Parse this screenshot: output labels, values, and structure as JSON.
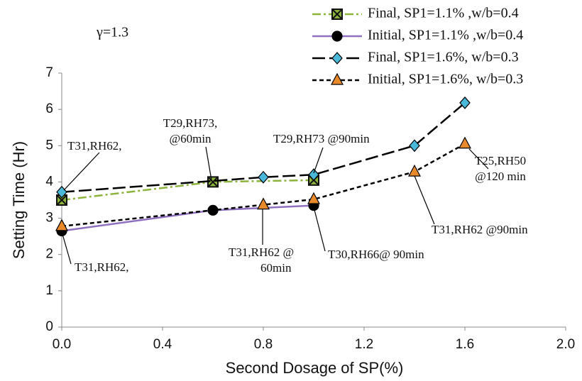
{
  "chart_data": {
    "type": "line",
    "note": "γ=1.3",
    "x_label": "Second Dosage of SP(%)",
    "y_label": "Setting Time (Hr)",
    "xlim": [
      0,
      2.0
    ],
    "ylim": [
      0,
      7
    ],
    "xticks": [
      {
        "value": 0,
        "label": "0.0"
      },
      0.4,
      0.8,
      1.2,
      1.6,
      {
        "value": 2.0,
        "label": "2.0"
      }
    ],
    "yticks": [
      0,
      1,
      2,
      3,
      4,
      5,
      6,
      7
    ],
    "series": [
      {
        "name": "Final, SP1=1.1% ,w/b=0.4",
        "color": "#8cb43c",
        "marker": "square-x",
        "marker_color": "#3a6e1e",
        "dash": "12 4 3 4",
        "x": [
          0,
          0.6,
          1.0
        ],
        "values": [
          3.5,
          4.0,
          4.05
        ]
      },
      {
        "name": "Initial, SP1=1.1% ,w/b=0.4",
        "color": "#8f6fc0",
        "marker": "circle",
        "marker_color": "#000000",
        "dash": "none",
        "x": [
          0,
          0.6,
          1.0
        ],
        "values": [
          2.65,
          3.22,
          3.35
        ]
      },
      {
        "name": "Final, SP1=1.6%, w/b=0.3",
        "color": "#000000",
        "marker": "diamond",
        "marker_color": "#4ab8d8",
        "dash": "18 6",
        "x": [
          0,
          0.8,
          1.0,
          1.4,
          1.6
        ],
        "values": [
          3.72,
          4.13,
          4.2,
          5.0,
          6.18
        ]
      },
      {
        "name": "Initial, SP1=1.6%, w/b=0.3",
        "color": "#000000",
        "marker": "triangle",
        "marker_color": "#e8892a",
        "dash": "6 4",
        "x": [
          0,
          0.8,
          1.0,
          1.4,
          1.6
        ],
        "values": [
          2.78,
          3.37,
          3.52,
          4.28,
          5.05
        ]
      }
    ],
    "annotations": [
      {
        "lines": [
          "T31,RH62,"
        ]
      },
      {
        "lines": [
          "T31,RH62,"
        ]
      },
      {
        "lines": [
          "T29,RH73,",
          "@60min"
        ]
      },
      {
        "lines": [
          "T29,RH73 @90min"
        ]
      },
      {
        "lines": [
          "T25,RH50",
          "@120 min"
        ]
      },
      {
        "lines": [
          "T31,RH62 @90min"
        ]
      },
      {
        "lines": [
          "T31,RH62 @",
          "60min"
        ]
      },
      {
        "lines": [
          "T30,RH66@ 90min"
        ]
      }
    ]
  }
}
